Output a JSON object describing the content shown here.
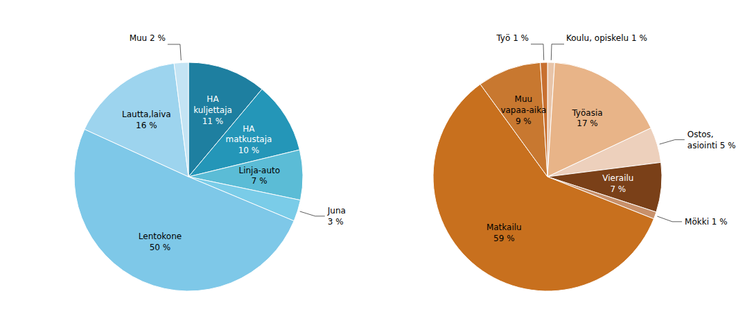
{
  "chart_data": [
    {
      "type": "pie",
      "categories": [
        "HA\nkuljettaja\n11 %",
        "HA\nmatkustaja\n10 %",
        "Linja-auto\n7 %",
        "Juna\n3 %",
        "Lentokone\n50 %",
        "Lautta,laiva\n16 %",
        "Muu 2 %"
      ],
      "values": [
        11,
        10,
        7,
        3,
        50,
        16,
        2
      ],
      "colors": [
        "#1e7fa0",
        "#2496b8",
        "#5bbcd6",
        "#7acce8",
        "#7ec8e8",
        "#9dd4ee",
        "#c4e4f4"
      ]
    },
    {
      "type": "pie",
      "categories": [
        "Koulu, opiskelu 1 %",
        "Työasia\n17 %",
        "Ostos,\nasiointi 5 %",
        "Vierailu\n7 %",
        "Mökki 1 %",
        "Matkailu\n59 %",
        "Muu\nvapaa-aika\n9 %",
        "Työ 1 %"
      ],
      "values": [
        1,
        17,
        5,
        7,
        1,
        59,
        9,
        1
      ],
      "colors": [
        "#e8c4a8",
        "#e8b488",
        "#edd0bc",
        "#7a4018",
        "#c8906a",
        "#c8701e",
        "#c87830",
        "#c87030"
      ]
    }
  ]
}
